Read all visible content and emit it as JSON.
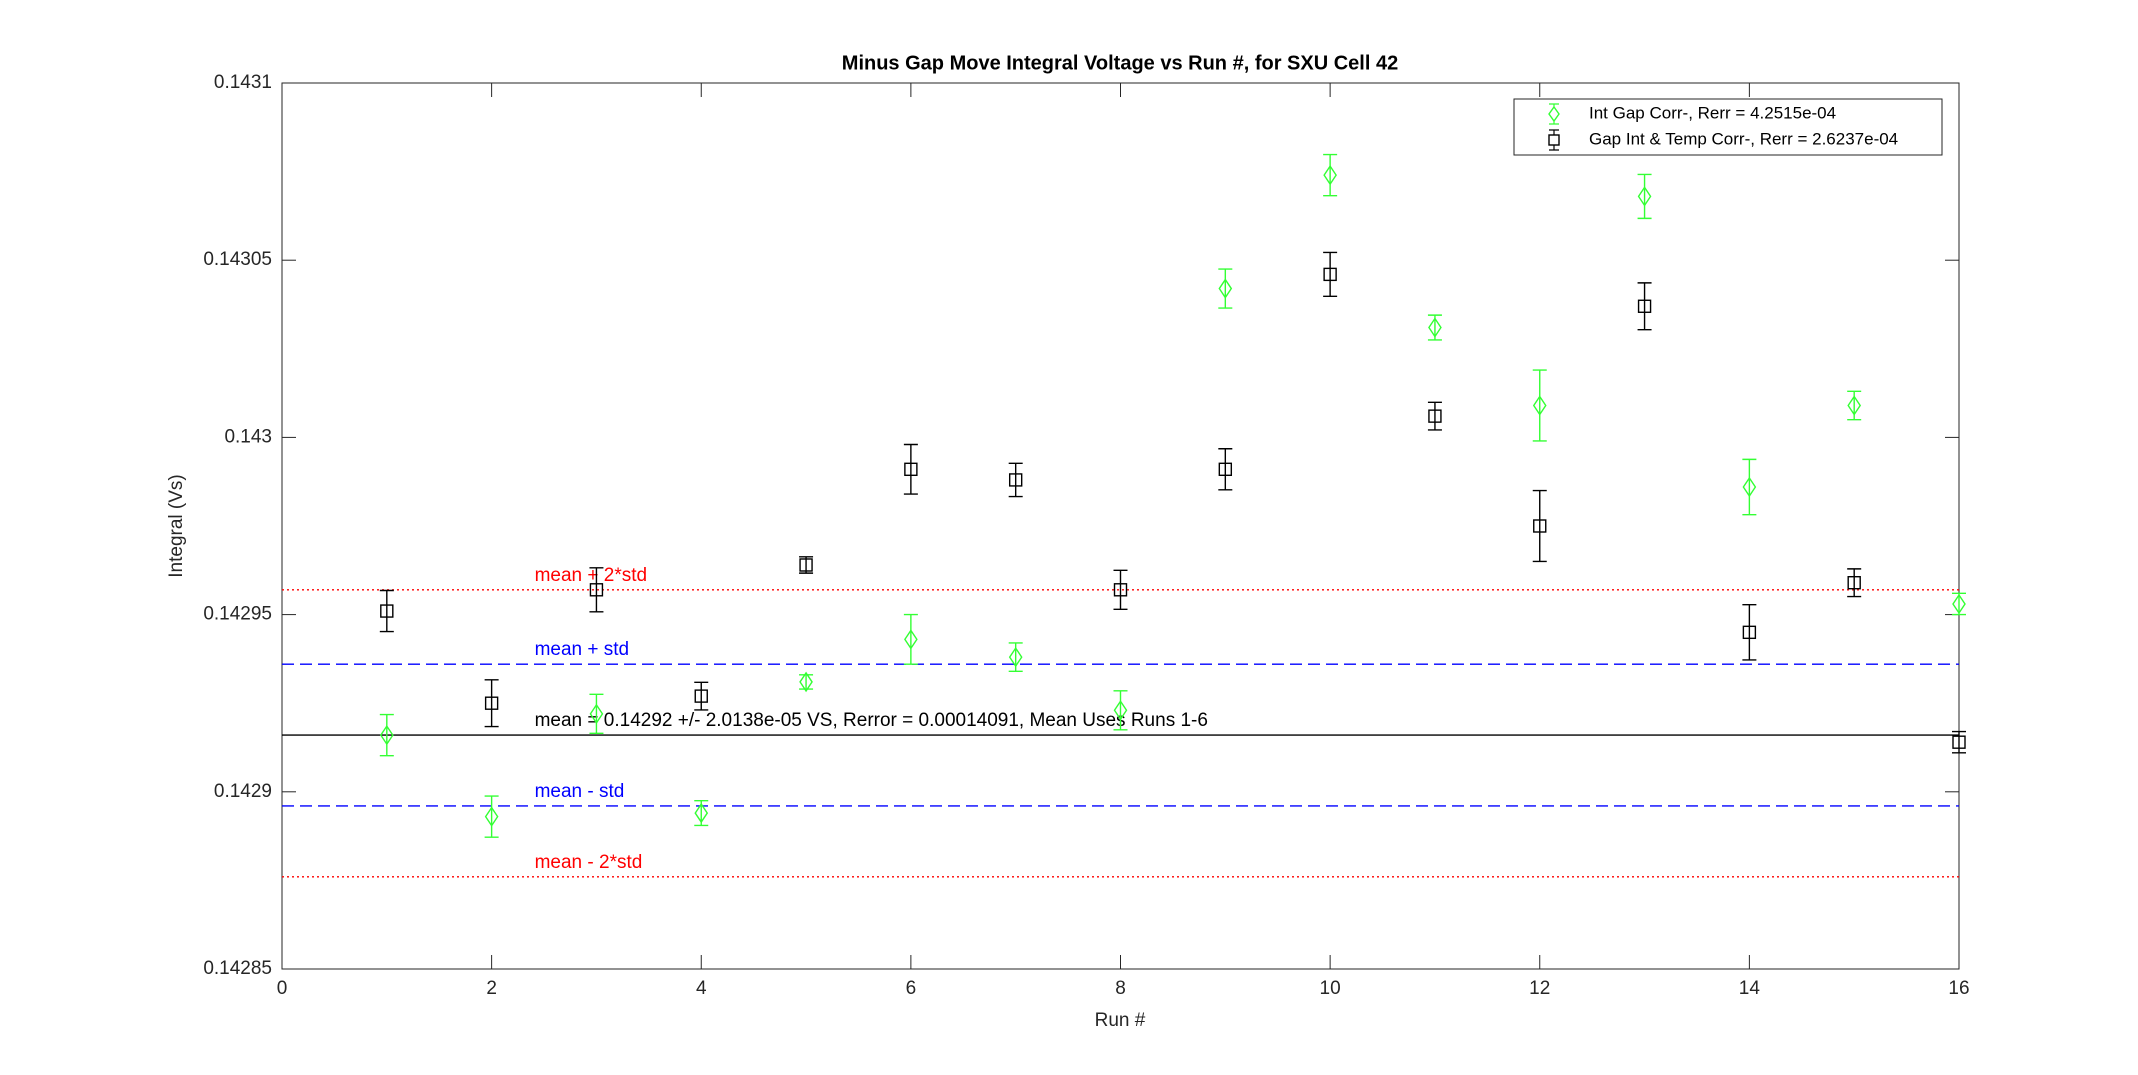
{
  "chart_data": {
    "type": "errorbar",
    "title": "Minus Gap Move Integral Voltage vs Run #, for SXU Cell 42",
    "x_label": "Run #",
    "y_label": "Integral (Vs)",
    "x": [
      1,
      2,
      3,
      4,
      5,
      6,
      7,
      8,
      9,
      10,
      11,
      12,
      13,
      14,
      15,
      16
    ],
    "series": [
      {
        "name": "Int Gap Corr-, Rerr = 4.2515e-04",
        "color": "#33ff33",
        "marker": "diamond",
        "values": [
          0.142916,
          0.142893,
          0.142922,
          0.142894,
          0.142931,
          0.142943,
          0.142938,
          0.142923,
          0.143042,
          0.143074,
          0.143031,
          0.143009,
          0.143068,
          0.142986,
          0.143009,
          0.142953
        ],
        "errors": [
          5.8e-06,
          5.8e-06,
          5.5e-06,
          3.5e-06,
          2e-06,
          7e-06,
          4e-06,
          5.5e-06,
          5.5e-06,
          5.8e-06,
          3.5e-06,
          1e-05,
          6.2e-06,
          7.8e-06,
          4e-06,
          3e-06
        ]
      },
      {
        "name": "Gap Int & Temp Corr-, Rerr = 2.6237e-04",
        "color": "#000000",
        "marker": "square",
        "values": [
          0.142951,
          0.142925,
          0.142957,
          0.142927,
          0.142964,
          0.142991,
          0.142988,
          0.142957,
          0.142991,
          0.143046,
          0.143006,
          0.142975,
          0.143037,
          0.142945,
          0.142959,
          0.142914
        ],
        "errors": [
          5.8e-06,
          6.6e-06,
          6.2e-06,
          3.9e-06,
          2.3e-06,
          7e-06,
          4.7e-06,
          5.5e-06,
          5.8e-06,
          6.2e-06,
          3.9e-06,
          1e-05,
          6.6e-06,
          7.8e-06,
          3.9e-06,
          3e-06
        ]
      }
    ],
    "ref_lines": [
      {
        "label": "mean + 2*std",
        "value": 0.142957,
        "color": "#ff0000",
        "dash": "dotted"
      },
      {
        "label": "mean + std",
        "value": 0.142936,
        "color": "#0000ff",
        "dash": "dashed"
      },
      {
        "label": "mean = 0.14292 +/- 2.0138e-05 VS, Rerror = 0.00014091, Mean Uses Runs 1-6",
        "value": 0.142916,
        "color": "#000000",
        "dash": "solid"
      },
      {
        "label": "mean - std",
        "value": 0.142896,
        "color": "#0000ff",
        "dash": "dashed"
      },
      {
        "label": "mean - 2*std",
        "value": 0.142876,
        "color": "#ff0000",
        "dash": "dotted"
      }
    ],
    "xlim": [
      0,
      16
    ],
    "xticks": [
      0,
      2,
      4,
      6,
      8,
      10,
      12,
      14,
      16
    ],
    "ylim": [
      0.14285,
      0.1431
    ],
    "yticks": [
      0.14285,
      0.1429,
      0.14295,
      0.143,
      0.14305,
      0.1431
    ],
    "legend": "upper right"
  }
}
